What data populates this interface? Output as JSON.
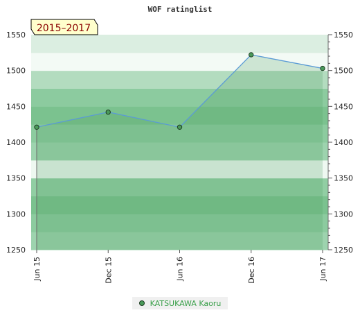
{
  "chart_data": {
    "type": "area",
    "title": "WOF ratinglist",
    "period_label": "2015–2017",
    "categories": [
      "Jun 15",
      "Dec 15",
      "Jun 16",
      "Dec 16",
      "Jun 17"
    ],
    "series": [
      {
        "name": "KATSUKAWA Kaoru",
        "values": [
          1421,
          1442,
          1421,
          1522,
          1503
        ]
      }
    ],
    "ylim": [
      1250,
      1550
    ],
    "yticks": [
      1250,
      1300,
      1350,
      1400,
      1450,
      1500,
      1550
    ],
    "ytick_labels": [
      "1250",
      "1300",
      "1350",
      "1400",
      "1450",
      "1500",
      "1550"
    ],
    "grid": false,
    "legend_position": "bottom",
    "colors": {
      "line": "#5b9bd5",
      "marker": "#4a9a5a",
      "legend_text": "#3aa04a",
      "badge_bg": "#ffffcc",
      "badge_text": "#8a0000"
    }
  }
}
